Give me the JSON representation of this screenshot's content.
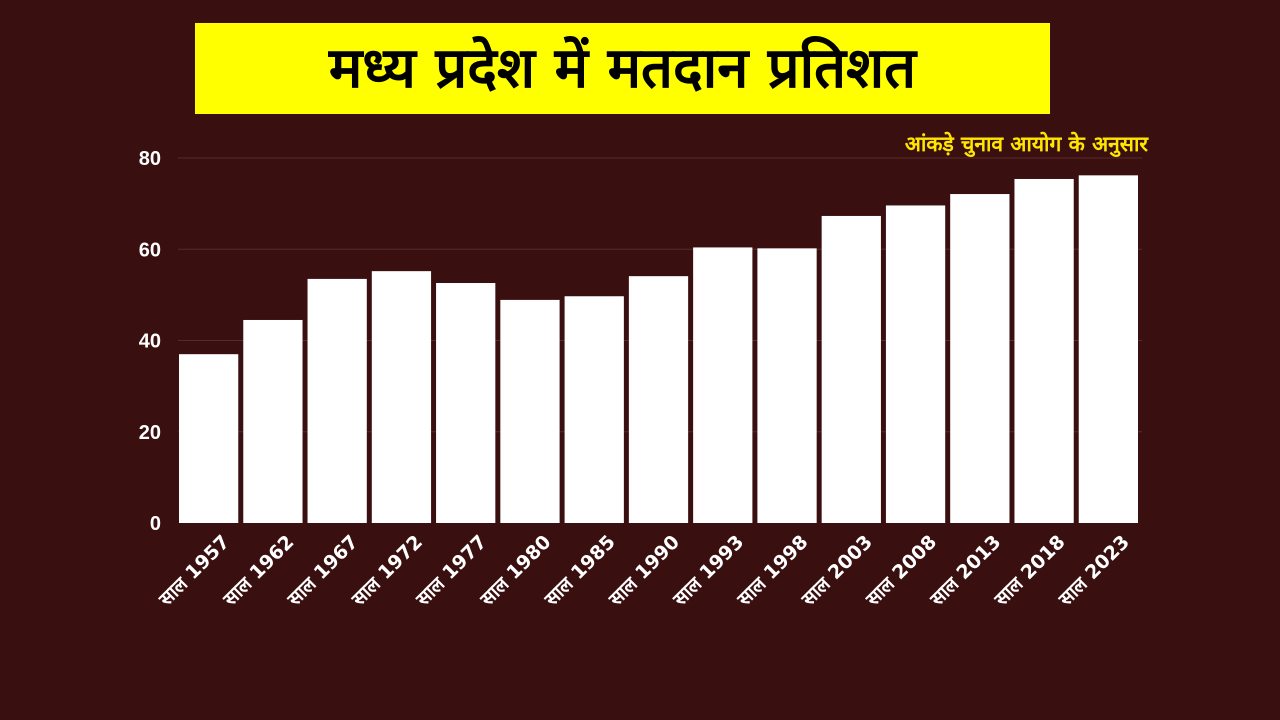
{
  "colors": {
    "background": "#3a0f10",
    "title_background": "#ffff00",
    "title_text": "#000000",
    "source_text": "#ffe600",
    "bars": "#ffffff",
    "gridlines": "#5a2a2b",
    "tick_text": "#ffffff"
  },
  "chart_data": {
    "type": "bar",
    "title": "मध्य प्रदेश में मतदान प्रतिशत",
    "subtitle": "आंकड़े चुनाव आयोग के अनुसार",
    "xlabel": "",
    "ylabel": "",
    "categories": [
      "साल 1957",
      "साल 1962",
      "साल 1967",
      "साल 1972",
      "साल 1977",
      "साल 1980",
      "साल 1985",
      "साल 1990",
      "साल 1993",
      "साल 1998",
      "साल 2003",
      "साल 2008",
      "साल 2013",
      "साल 2018",
      "साल 2023"
    ],
    "values": [
      37,
      44.5,
      53.5,
      55.2,
      52.6,
      48.9,
      49.7,
      54.1,
      60.4,
      60.2,
      67.3,
      69.6,
      72.1,
      75.4,
      76.2
    ],
    "ylim": [
      0,
      80
    ],
    "yticks": [
      0,
      20,
      40,
      60,
      80
    ],
    "grid": true,
    "legend": "none"
  }
}
